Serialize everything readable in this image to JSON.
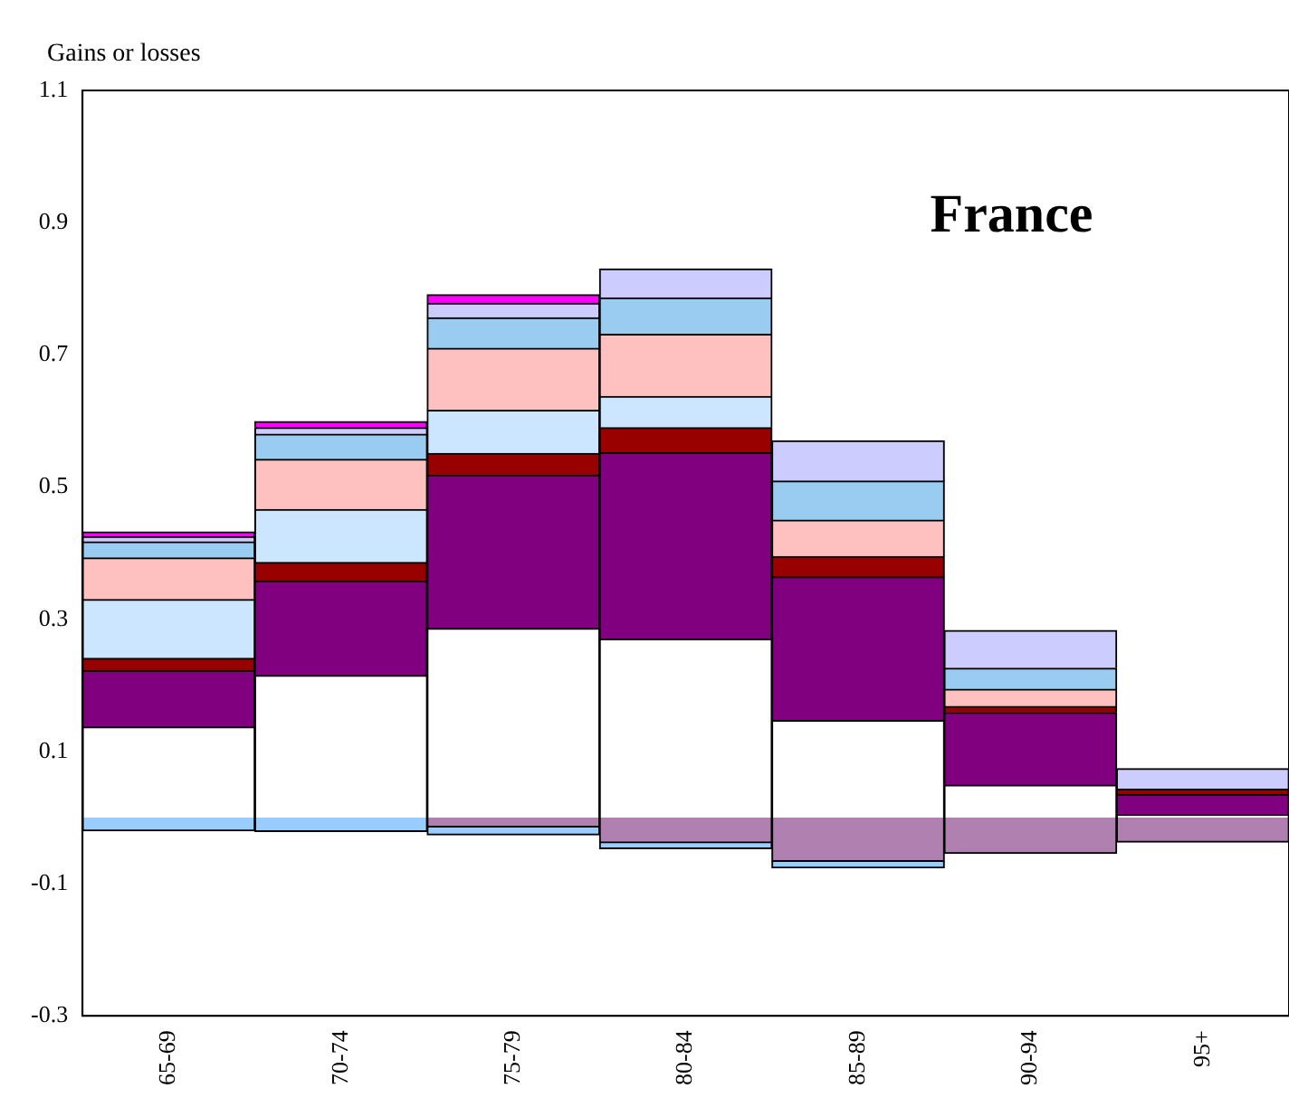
{
  "chart_data": {
    "type": "bar",
    "title": "France",
    "ylabel": "Gains or losses",
    "stacked": true,
    "categories": [
      "65-69",
      "70-74",
      "75-79",
      "80-84",
      "85-89",
      "90-94",
      "95+"
    ],
    "series": [
      {
        "color": "#ffffff",
        "values": [
          0.137,
          0.215,
          0.286,
          0.27,
          0.147,
          0.049,
          0.004
        ]
      },
      {
        "color": "#800080",
        "values": [
          0.085,
          0.143,
          0.232,
          0.282,
          0.217,
          0.11,
          0.031
        ]
      },
      {
        "color": "#990000",
        "values": [
          0.019,
          0.028,
          0.033,
          0.038,
          0.031,
          0.009,
          0.008
        ]
      },
      {
        "color": "#cce6ff",
        "values": [
          0.089,
          0.08,
          0.065,
          0.047,
          null,
          null,
          null
        ]
      },
      {
        "color": "#ffc0c0",
        "values": [
          0.063,
          0.076,
          0.094,
          0.094,
          0.055,
          0.026,
          null
        ]
      },
      {
        "color": "#99ccf0",
        "values": [
          0.024,
          0.038,
          0.046,
          0.055,
          0.059,
          0.032,
          null
        ]
      },
      {
        "color": "#ccccff",
        "values": [
          0.008,
          0.01,
          0.022,
          0.044,
          0.061,
          0.057,
          0.031
        ]
      },
      {
        "color": "#ff00ff",
        "values": [
          0.007,
          0.009,
          0.013,
          null,
          null,
          null,
          null
        ]
      },
      {
        "color": "#b080b0",
        "values": [
          null,
          null,
          -0.014,
          -0.038,
          -0.066,
          -0.054,
          -0.037
        ]
      },
      {
        "color": "#99ccff",
        "values": [
          -0.02,
          -0.021,
          -0.012,
          -0.009,
          -0.01,
          null,
          null
        ]
      }
    ],
    "ylim": [
      -0.3,
      1.1
    ],
    "yticks": [
      -0.3,
      -0.1,
      0.1,
      0.3,
      0.5,
      0.7,
      0.9,
      1.1
    ],
    "grid": false,
    "legend": false
  }
}
